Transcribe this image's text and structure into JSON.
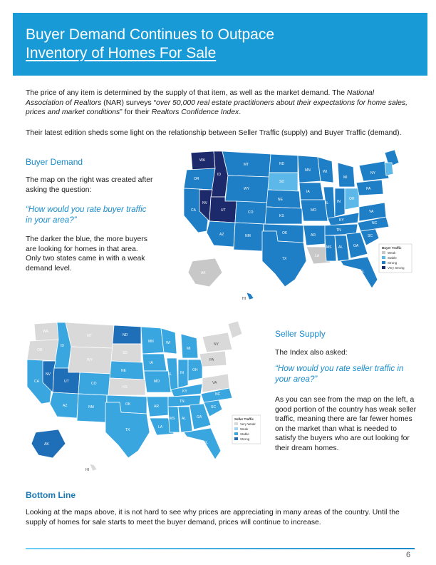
{
  "header": {
    "title_line1": "Buyer Demand Continues to Outpace",
    "title_line2": "Inventory of Homes For Sale"
  },
  "intro": {
    "p1_a": "The price of any item is determined by the supply of that item, as well as the market demand. The ",
    "p1_b": "National Association of Realtors",
    "p1_c": " (NAR) surveys “",
    "p1_d": "over 50,000 real estate practitioners about their expectations for home sales, prices and market conditions",
    "p1_e": "” for their ",
    "p1_f": "Realtors Confidence Index",
    "p1_g": ".",
    "p2": "Their latest edition sheds some light on the relationship between Seller Traffic (supply) and Buyer Traffic (demand)."
  },
  "buyer": {
    "heading": "Buyer Demand",
    "p1": "The map on the right was created after asking the question:",
    "quote": "“How would you rate buyer traffic in your area?”",
    "p2": "The darker the blue, the more buyers are looking for homes in that area. Only two states came in with a weak demand level.",
    "legend_title": "Buyer Traffic",
    "legend": [
      {
        "label": "Weak",
        "color": "#c8c8c8"
      },
      {
        "label": "Stable",
        "color": "#5cb8e8"
      },
      {
        "label": "Strong",
        "color": "#1f7fc6"
      },
      {
        "label": "Very Strong",
        "color": "#1c2a6b"
      }
    ],
    "state_labels": [
      "WA",
      "OR",
      "ID",
      "MT",
      "ND",
      "SD",
      "WY",
      "NV",
      "UT",
      "CO",
      "NE",
      "KS",
      "CA",
      "AZ",
      "NM",
      "TX",
      "OK",
      "MN",
      "WI",
      "IA",
      "MO",
      "AR",
      "LA",
      "MS",
      "AL",
      "GA",
      "FL",
      "TN",
      "KY",
      "IL",
      "IN",
      "MI",
      "OH",
      "PA",
      "NY",
      "VA",
      "NC",
      "SC",
      "AK",
      "HI"
    ]
  },
  "seller": {
    "heading": "Seller Supply",
    "p1": "The Index also asked:",
    "quote": "“How would you rate seller traffic in your area?”",
    "p2": "As you can see from the map on the left, a good portion of the country has weak seller traffic, meaning there are far fewer homes on the market than what is needed to satisfy the buyers who are out looking for their dream homes.",
    "legend_title": "Seller Traffic",
    "legend": [
      {
        "label": "Very Weak",
        "color": "#d9d9d9"
      },
      {
        "label": "Weak",
        "color": "#9fd4f2"
      },
      {
        "label": "Stable",
        "color": "#3aa6e0"
      },
      {
        "label": "Strong",
        "color": "#1f6fb8"
      }
    ],
    "state_labels": [
      "WA",
      "OR",
      "ID",
      "MT",
      "ND",
      "SD",
      "WY",
      "NV",
      "UT",
      "CO",
      "NE",
      "KS",
      "CA",
      "AZ",
      "NM",
      "TX",
      "OK",
      "MN",
      "WI",
      "IA",
      "MO",
      "AR",
      "LA",
      "MS",
      "AL",
      "GA",
      "FL",
      "TN",
      "KY",
      "IL",
      "IN",
      "MI",
      "OH",
      "PA",
      "NY",
      "VA",
      "NC",
      "SC",
      "AK",
      "HI"
    ]
  },
  "bottom": {
    "heading": "Bottom Line",
    "p": "Looking at the maps above, it is not hard to see why prices are appreciating in many areas of the country. Until the supply of homes for sale starts to meet the buyer demand, prices will continue to increase."
  },
  "page_number": "6",
  "colors": {
    "header_blue": "#189ad6",
    "accent_blue": "#1a8bc9"
  }
}
